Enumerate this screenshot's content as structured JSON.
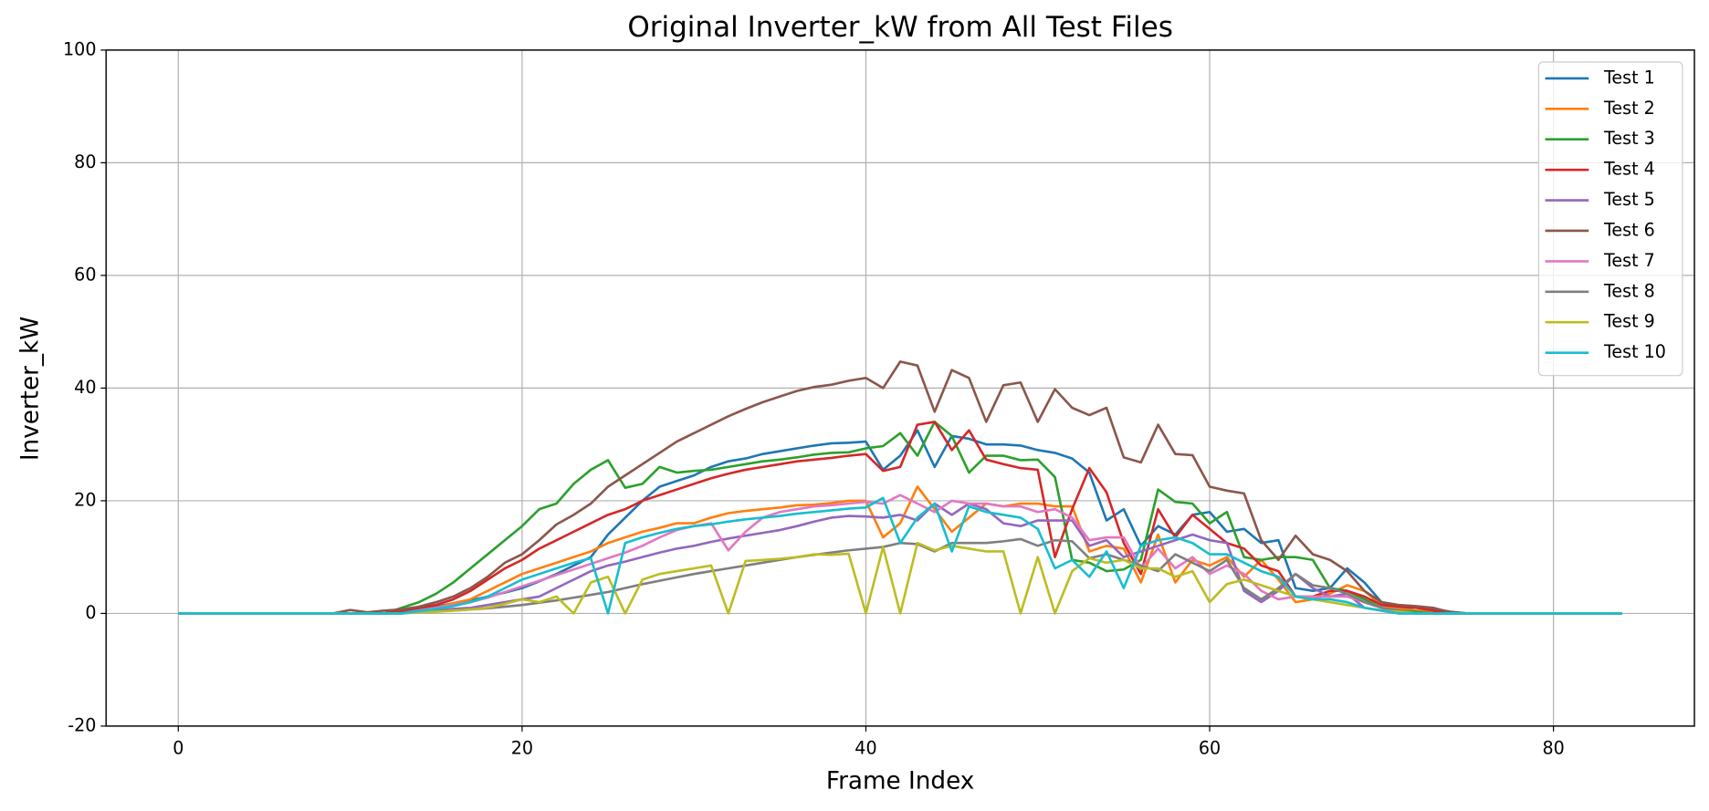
{
  "chart_data": {
    "type": "line",
    "title": "Original Inverter_kW from All Test Files",
    "x_label": "Frame Index",
    "y_label": "Inverter_kW",
    "xlim": [
      -4.2,
      88.2
    ],
    "ylim": [
      -20,
      100
    ],
    "xticks": [
      0,
      20,
      40,
      60,
      80
    ],
    "yticks": [
      -20,
      0,
      20,
      40,
      60,
      80,
      100
    ],
    "grid": true,
    "legend": "upper right",
    "x": [
      0,
      1,
      2,
      3,
      4,
      5,
      6,
      7,
      8,
      9,
      10,
      11,
      12,
      13,
      14,
      15,
      16,
      17,
      18,
      19,
      20,
      21,
      22,
      23,
      24,
      25,
      26,
      27,
      28,
      29,
      30,
      31,
      32,
      33,
      34,
      35,
      36,
      37,
      38,
      39,
      40,
      41,
      42,
      43,
      44,
      45,
      46,
      47,
      48,
      49,
      50,
      51,
      52,
      53,
      54,
      55,
      56,
      57,
      58,
      59,
      60,
      61,
      62,
      63,
      64,
      65,
      66,
      67,
      68,
      69,
      70,
      71,
      72,
      73,
      74,
      75,
      76,
      77,
      78,
      79,
      80,
      81,
      82,
      83,
      84
    ],
    "series": [
      {
        "name": "Test 1",
        "color": "#1f77b4",
        "values": [
          0,
          0,
          0,
          0,
          0,
          0,
          0,
          0,
          0,
          0,
          0,
          0,
          0,
          0.3,
          0.8,
          1.2,
          1.8,
          2.3,
          3,
          3.7,
          4.5,
          5.7,
          7,
          8.5,
          10,
          14,
          17,
          20,
          22.5,
          23.5,
          24.5,
          26,
          27,
          27.5,
          28.3,
          28.8,
          29.3,
          29.8,
          30.2,
          30.3,
          30.5,
          25.5,
          28,
          32.5,
          26,
          31.5,
          31,
          30,
          30,
          29.8,
          29,
          28.5,
          27.5,
          25,
          16.5,
          18.5,
          12,
          15.5,
          14,
          17.5,
          18,
          14.5,
          15,
          12.5,
          13,
          4.5,
          4,
          4.5,
          8,
          5.5,
          2,
          1,
          1,
          0.8,
          0.3,
          0,
          0,
          0,
          0,
          0,
          0,
          0,
          0,
          0,
          0
        ]
      },
      {
        "name": "Test 2",
        "color": "#ff7f0e",
        "values": [
          0,
          0,
          0,
          0,
          0,
          0,
          0,
          0,
          0,
          0,
          0,
          0,
          0,
          0,
          0.5,
          1,
          1.8,
          2.5,
          4,
          5.5,
          7,
          8,
          9,
          10,
          11,
          12.5,
          13.5,
          14.5,
          15.2,
          16,
          16,
          17,
          17.8,
          18.2,
          18.5,
          18.8,
          19.2,
          19.3,
          19.6,
          20,
          20,
          13.5,
          16,
          22.5,
          18.5,
          14.5,
          17,
          19.5,
          19,
          19.5,
          19.5,
          19,
          19,
          11,
          12,
          11.5,
          5.5,
          14,
          5.5,
          9.5,
          8.5,
          10,
          6.5,
          9.5,
          6,
          2,
          2.5,
          3.5,
          5,
          4,
          1.5,
          0.8,
          0.5,
          0.3,
          0,
          0,
          0,
          0,
          0,
          0,
          0,
          0,
          0,
          0,
          0
        ]
      },
      {
        "name": "Test 3",
        "color": "#2ca02c",
        "values": [
          0,
          0,
          0,
          0,
          0,
          0,
          0,
          0,
          0,
          0,
          0,
          0,
          0,
          1,
          2,
          3.5,
          5.5,
          8,
          10.5,
          13,
          15.5,
          18.5,
          19.5,
          23,
          25.5,
          27.2,
          22.3,
          23,
          26,
          25,
          25.3,
          25.5,
          26,
          26.5,
          27,
          27.3,
          27.7,
          28.2,
          28.5,
          28.6,
          29.3,
          29.7,
          32,
          28,
          34,
          31.5,
          25,
          28,
          28,
          27.2,
          27.3,
          24.2,
          9.5,
          9,
          7.5,
          7.8,
          9.5,
          22,
          19.8,
          19.5,
          16,
          18,
          10,
          9.5,
          10,
          10,
          9.5,
          4.5,
          4,
          2.5,
          1,
          0.5,
          0.3,
          0,
          0,
          0,
          0,
          0,
          0,
          0,
          0,
          0,
          0,
          0,
          0
        ]
      },
      {
        "name": "Test 4",
        "color": "#d62728",
        "values": [
          0,
          0,
          0,
          0,
          0,
          0,
          0,
          0,
          0,
          0,
          0,
          0,
          0,
          0.5,
          1,
          1.5,
          2.5,
          4,
          6,
          8,
          9.5,
          11.5,
          13,
          14.5,
          16,
          17.5,
          18.5,
          20,
          21,
          22,
          23,
          24,
          24.8,
          25.5,
          26,
          26.5,
          27,
          27.3,
          27.6,
          28,
          28.3,
          25.3,
          26,
          33.5,
          34,
          29,
          32.5,
          27.3,
          26.5,
          25.8,
          25.5,
          10,
          18.5,
          25.8,
          21.5,
          12.5,
          7,
          18.5,
          13.5,
          17.5,
          15,
          12.5,
          11.5,
          8.5,
          7.5,
          3,
          3,
          4,
          4,
          3,
          1.5,
          1.2,
          1,
          0.5,
          0,
          0,
          0,
          0,
          0,
          0,
          0,
          0,
          0,
          0,
          0
        ]
      },
      {
        "name": "Test 5",
        "color": "#9467bd",
        "values": [
          0,
          0,
          0,
          0,
          0,
          0,
          0,
          0,
          0,
          0,
          0,
          0,
          0,
          0,
          0.3,
          0.5,
          0.8,
          1,
          1.5,
          2,
          2.5,
          3,
          4.5,
          6,
          7.5,
          8.5,
          9.2,
          10,
          10.8,
          11.5,
          12,
          12.7,
          13.3,
          13.8,
          14.3,
          14.8,
          15.5,
          16.3,
          17,
          17.3,
          17.2,
          17,
          17.5,
          16.5,
          19.5,
          17.5,
          19.5,
          18.5,
          16,
          15.5,
          16.5,
          16.5,
          16.5,
          12,
          13,
          10,
          11,
          12,
          13,
          14,
          13,
          12.5,
          4,
          2,
          4,
          7,
          4.5,
          3,
          3.5,
          1,
          0.5,
          0,
          0,
          0,
          0,
          0,
          0,
          0,
          0,
          0,
          0,
          0,
          0,
          0,
          0
        ]
      },
      {
        "name": "Test 6",
        "color": "#8c564b",
        "values": [
          0,
          0,
          0,
          0,
          0,
          0,
          0,
          0,
          0,
          0,
          0.6,
          0.2,
          0.5,
          0.7,
          1.2,
          2,
          3,
          4.5,
          6.5,
          9,
          10.5,
          13,
          15.8,
          17.5,
          19.5,
          22.5,
          24.5,
          26.5,
          28.5,
          30.5,
          32,
          33.5,
          35,
          36.3,
          37.5,
          38.5,
          39.5,
          40.2,
          40.6,
          41.3,
          41.8,
          40,
          44.7,
          44,
          35.8,
          43.2,
          41.8,
          34,
          40.5,
          41,
          34,
          39.8,
          36.5,
          35.2,
          36.5,
          27.7,
          26.8,
          33.5,
          28.3,
          28.1,
          22.5,
          21.8,
          21.3,
          13,
          9.5,
          13.8,
          10.5,
          9.5,
          7.5,
          4,
          2,
          1.5,
          1.3,
          1,
          0.2,
          0,
          0,
          0,
          0,
          0,
          0,
          0,
          0,
          0,
          0
        ]
      },
      {
        "name": "Test 7",
        "color": "#e377c2",
        "values": [
          0,
          0,
          0,
          0,
          0,
          0,
          0,
          0,
          0,
          0,
          0,
          0,
          0,
          0,
          0.5,
          1,
          1.5,
          2,
          2.8,
          3.8,
          4.8,
          5.8,
          6.8,
          7.8,
          8.8,
          9.8,
          10.8,
          12,
          13.5,
          14.8,
          15.5,
          16,
          11.2,
          14.5,
          17,
          18,
          18.5,
          19,
          19.2,
          19.5,
          19.8,
          19.5,
          21,
          19.5,
          18,
          20,
          19.5,
          19.5,
          19,
          19,
          18,
          18.5,
          17,
          13,
          13.5,
          13.5,
          8,
          11.5,
          8,
          10,
          7,
          8.5,
          7,
          4,
          2.5,
          3,
          3,
          3,
          3,
          2,
          1,
          0.5,
          0,
          0,
          0,
          0,
          0,
          0,
          0,
          0,
          0,
          0,
          0,
          0,
          0
        ]
      },
      {
        "name": "Test 8",
        "color": "#7f7f7f",
        "values": [
          0,
          0,
          0,
          0,
          0,
          0,
          0,
          0,
          0,
          0,
          0,
          0,
          0,
          0,
          0.3,
          0.4,
          0.5,
          0.7,
          0.9,
          1.2,
          1.5,
          1.9,
          2.3,
          2.8,
          3.3,
          3.8,
          4.5,
          5.2,
          5.8,
          6.4,
          7,
          7.5,
          8,
          8.5,
          9,
          9.5,
          10,
          10.4,
          10.8,
          11.2,
          11.5,
          11.8,
          12.5,
          12.3,
          11,
          12.5,
          12.5,
          12.5,
          12.8,
          13.2,
          12,
          13,
          12.8,
          9.8,
          10.5,
          9.5,
          8.5,
          7.5,
          10.5,
          9,
          7.5,
          9.5,
          4.5,
          2.5,
          4.5,
          7,
          5,
          4.5,
          3.5,
          2,
          1,
          0.5,
          0,
          0,
          0,
          0,
          0,
          0,
          0,
          0,
          0,
          0,
          0,
          0,
          0
        ]
      },
      {
        "name": "Test 9",
        "color": "#bcbd22",
        "values": [
          0,
          0,
          0,
          0,
          0,
          0,
          0,
          0,
          0,
          0,
          0,
          0,
          0,
          0,
          0.2,
          0.3,
          0.5,
          0.7,
          1,
          1.7,
          2.5,
          2,
          3,
          0,
          5.5,
          6.5,
          0,
          6,
          7,
          7.5,
          8,
          8.5,
          0,
          9.3,
          9.5,
          9.7,
          10,
          10.5,
          10.4,
          10.6,
          0,
          11.8,
          0,
          12.5,
          11.2,
          12,
          11.5,
          11,
          11,
          0,
          10,
          0,
          7.5,
          9.8,
          9,
          9.5,
          8,
          8,
          6.5,
          7.5,
          2,
          5.2,
          6,
          5,
          4,
          3,
          2.5,
          2,
          1.5,
          1,
          0.5,
          0.3,
          0,
          0,
          0,
          0,
          0,
          0,
          0,
          0,
          0,
          0,
          0,
          0,
          0
        ]
      },
      {
        "name": "Test 10",
        "color": "#17becf",
        "values": [
          0,
          0,
          0,
          0,
          0,
          0,
          0,
          0,
          0,
          0,
          0,
          0,
          0,
          0,
          0.4,
          0.8,
          1.3,
          2,
          3,
          4.5,
          6,
          7,
          8,
          9,
          9.8,
          0,
          12.5,
          13.5,
          14.3,
          15,
          15.5,
          15.8,
          16.3,
          16.7,
          17,
          17.3,
          17.7,
          18,
          18.3,
          18.6,
          18.8,
          20.5,
          12.5,
          17,
          19.5,
          11,
          19,
          18,
          17.5,
          17,
          15,
          8,
          9.5,
          6.5,
          11,
          4.5,
          12,
          13,
          13.5,
          12.5,
          10.5,
          10.5,
          9,
          7.5,
          6.5,
          3,
          2.5,
          2.5,
          2,
          1,
          0.5,
          0,
          0,
          0,
          0,
          0,
          0,
          0,
          0,
          0,
          0,
          0,
          0,
          0,
          0
        ]
      }
    ]
  }
}
